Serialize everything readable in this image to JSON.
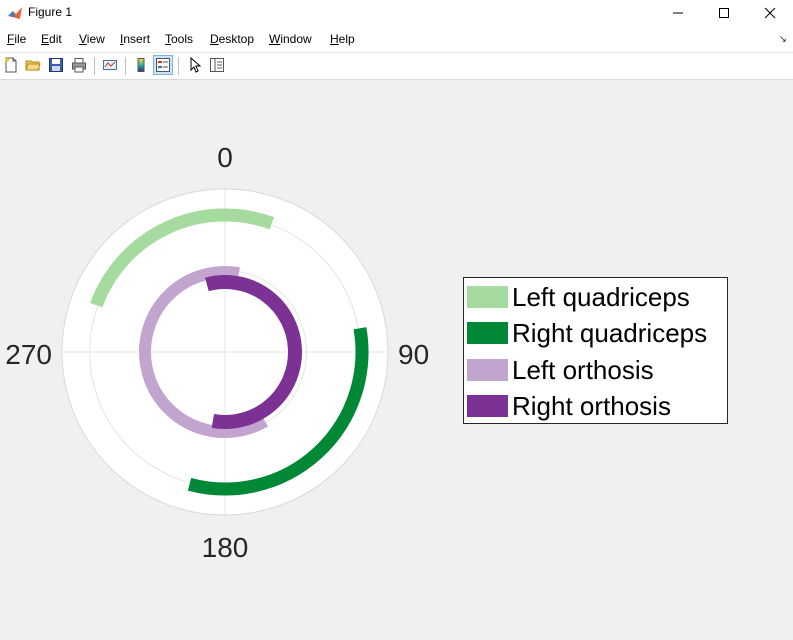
{
  "window": {
    "title": "Figure 1",
    "minimize_glyph": "—",
    "maximize_glyph": "☐",
    "close_glyph": "✕"
  },
  "menubar": {
    "items": [
      "File",
      "Edit",
      "View",
      "Insert",
      "Tools",
      "Desktop",
      "Window",
      "Help"
    ],
    "dock_glyph": "↘"
  },
  "toolbar": {
    "buttons": [
      {
        "name": "new-figure",
        "icon": "new-file-icon"
      },
      {
        "name": "open-file",
        "icon": "folder-open-icon"
      },
      {
        "name": "save-figure",
        "icon": "save-icon"
      },
      {
        "name": "print-figure",
        "icon": "printer-icon"
      },
      {
        "name": "link-plot",
        "icon": "link-plot-icon"
      },
      {
        "name": "insert-colorbar",
        "icon": "colorbar-icon"
      },
      {
        "name": "insert-legend",
        "icon": "legend-icon",
        "active": true
      },
      {
        "name": "edit-plot",
        "icon": "pointer-arrow-icon"
      },
      {
        "name": "show-plot-tools",
        "icon": "plot-tools-icon"
      }
    ]
  },
  "chart_data": {
    "type": "polar-arc",
    "theta_direction": "clockwise",
    "theta_zero": "top",
    "theta_ticks": [
      "0",
      "90",
      "180",
      "270"
    ],
    "grid": true,
    "legend_position": "right",
    "series": [
      {
        "name": "Left quadriceps",
        "color": "#a6dba0",
        "start_deg": 290,
        "end_deg": 20
      },
      {
        "name": "Right quadriceps",
        "color": "#008837",
        "start_deg": 80,
        "end_deg": 195
      },
      {
        "name": "Left orthosis",
        "color": "#c2a5cf",
        "start_deg": 150,
        "end_deg": 10
      },
      {
        "name": "Right orthosis",
        "color": "#7b3294",
        "start_deg": 345,
        "end_deg": 190
      }
    ]
  }
}
